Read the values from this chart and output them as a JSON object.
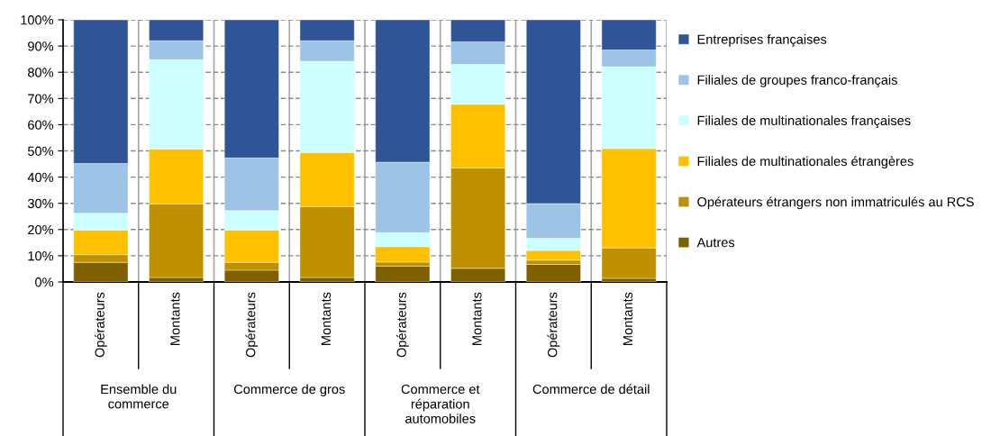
{
  "chart_data": {
    "type": "bar",
    "stacked": true,
    "categories": [
      "Opérateurs",
      "Montants",
      "Opérateurs",
      "Montants",
      "Opérateurs",
      "Montants",
      "Opérateurs",
      "Montants"
    ],
    "annotations": [
      "Ensemble du\ncommerce",
      "Commerce de gros",
      "Commerce et\nréparation\nautomobiles",
      "Commerce de détail"
    ],
    "series": [
      {
        "name": "Autres",
        "color": "#7f6000",
        "values": [
          7.5,
          1.7,
          4.5,
          1.7,
          6.0,
          5.2,
          6.7,
          1.4
        ]
      },
      {
        "name": "Opérateurs étrangers non immatriculés au RCS",
        "color": "#bf9000",
        "values": [
          2.9,
          28.1,
          3.0,
          27.0,
          1.6,
          38.3,
          1.6,
          11.6
        ]
      },
      {
        "name": "Filiales de multinationales étrangères",
        "color": "#ffc000",
        "values": [
          9.4,
          20.9,
          12.3,
          20.7,
          5.9,
          24.3,
          3.7,
          37.9
        ]
      },
      {
        "name": "Filiales de multinationales françaises",
        "color": "#ccffff",
        "values": [
          6.4,
          34.1,
          7.4,
          34.8,
          5.3,
          15.2,
          4.7,
          31.2
        ]
      },
      {
        "name": "Filiales de groupes franco-français",
        "color": "#9dc3e6",
        "values": [
          19.0,
          7.2,
          20.1,
          7.8,
          26.9,
          8.6,
          13.2,
          6.4
        ]
      },
      {
        "name": "Entreprises françaises",
        "color": "#2f5597",
        "values": [
          54.8,
          8.0,
          52.7,
          8.0,
          54.3,
          8.4,
          70.1,
          11.5
        ]
      }
    ],
    "ylim": [
      0,
      100
    ],
    "yticks": [
      {
        "value": 0,
        "label": "0%"
      },
      {
        "value": 10,
        "label": "10%"
      },
      {
        "value": 20,
        "label": "20%"
      },
      {
        "value": 30,
        "label": "30%"
      },
      {
        "value": 40,
        "label": "40%"
      },
      {
        "value": 50,
        "label": "50%"
      },
      {
        "value": 60,
        "label": "60%"
      },
      {
        "value": 70,
        "label": "70%"
      },
      {
        "value": 80,
        "label": "80%"
      },
      {
        "value": 90,
        "label": "90%"
      },
      {
        "value": 100,
        "label": "100%"
      }
    ],
    "grid": true,
    "legend": "right"
  }
}
